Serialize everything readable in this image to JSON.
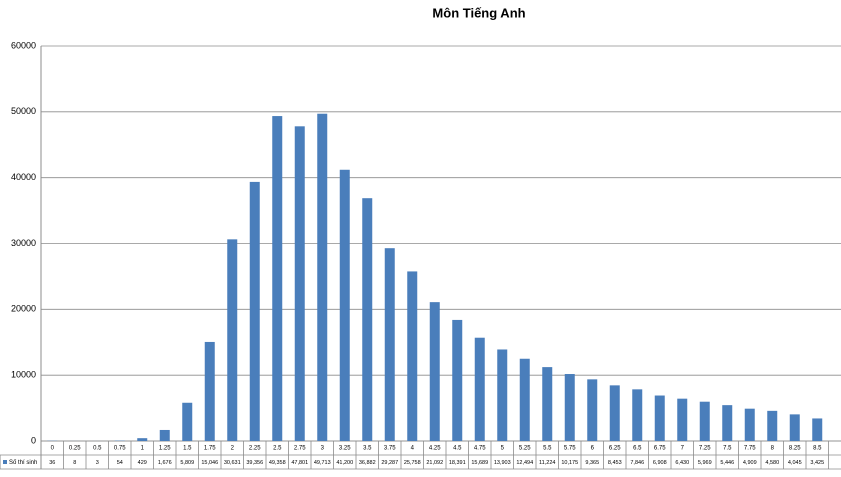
{
  "chart_data": {
    "type": "bar",
    "title": "Môn Tiếng Anh",
    "categories": [
      "0",
      "0.25",
      "0.5",
      "0.75",
      "1",
      "1.25",
      "1.5",
      "1.75",
      "2",
      "2.25",
      "2.5",
      "2.75",
      "3",
      "3.25",
      "3.5",
      "3.75",
      "4",
      "4.25",
      "4.5",
      "4.75",
      "5",
      "5.25",
      "5.5",
      "5.75",
      "6",
      "6.25",
      "6.5",
      "6.75",
      "7",
      "7.25",
      "7.5",
      "7.75",
      "8",
      "8.25",
      "8.5"
    ],
    "series": [
      {
        "name": "Số thí sinh",
        "color": "#4a7ebb",
        "values": [
          36,
          8,
          3,
          54,
          429,
          1676,
          5809,
          15046,
          30631,
          39356,
          49358,
          47801,
          49713,
          41200,
          36882,
          29287,
          25758,
          21092,
          18391,
          15689,
          13903,
          12494,
          11224,
          10175,
          9365,
          8453,
          7846,
          6908,
          6430,
          5969,
          5446,
          4909,
          4580,
          4045,
          3425
        ],
        "value_labels": [
          "36",
          "8",
          "3",
          "54",
          "429",
          "1,676",
          "5,809",
          "15,046",
          "30,631",
          "39,356",
          "49,358",
          "47,801",
          "49,713",
          "41,200",
          "36,882",
          "29,287",
          "25,758",
          "21,092",
          "18,391",
          "15,689",
          "13,903",
          "12,494",
          "11,224",
          "10,175",
          "9,365",
          "8,453",
          "7,846",
          "6,908",
          "6,430",
          "5,969",
          "5,446",
          "4,909",
          "4,580",
          "4,045",
          "3,425"
        ]
      }
    ],
    "ylim": [
      0,
      60000
    ],
    "yticks": [
      0,
      10000,
      20000,
      30000,
      40000,
      50000,
      60000
    ],
    "grid": true
  }
}
